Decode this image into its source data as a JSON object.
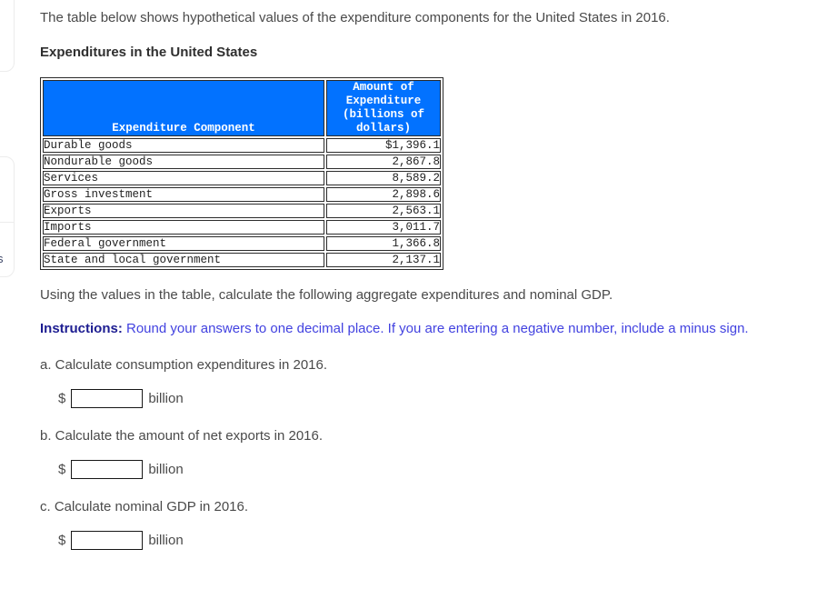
{
  "page": {
    "intro": "The table below shows hypothetical values of the expenditure components for the United States in 2016.",
    "table_title": "Expenditures in the United States",
    "prompt": "Using the values in the table, calculate the following aggregate expenditures and nominal GDP.",
    "instructions_label": "Instructions:",
    "instructions_text": " Round your answers to one decimal place. If you are entering a negative number, include a minus sign.",
    "side_fragment_text": "s"
  },
  "table": {
    "col1_header": "Expenditure Component",
    "col2_header_lines": [
      "Amount of",
      "Expenditure",
      "(billions of",
      "dollars)"
    ],
    "header_bg": "#0272ff",
    "header_text_color": "#ffffff",
    "rows": [
      {
        "component": "Durable goods",
        "amount": "$1,396.1"
      },
      {
        "component": "Nondurable goods",
        "amount": "2,867.8"
      },
      {
        "component": "Services",
        "amount": "8,589.2"
      },
      {
        "component": "Gross investment",
        "amount": "2,898.6"
      },
      {
        "component": "Exports",
        "amount": "2,563.1"
      },
      {
        "component": "Imports",
        "amount": "3,011.7"
      },
      {
        "component": "Federal government",
        "amount": "1,366.8"
      },
      {
        "component": "State and local government",
        "amount": "2,137.1"
      }
    ]
  },
  "questions": [
    {
      "id": "a",
      "text": "a. Calculate consumption expenditures in 2016.",
      "currency": "$",
      "unit": "billion",
      "value": ""
    },
    {
      "id": "b",
      "text": "b. Calculate the amount of net exports in 2016.",
      "currency": "$",
      "unit": "billion",
      "value": ""
    },
    {
      "id": "c",
      "text": "c. Calculate nominal GDP in 2016.",
      "currency": "$",
      "unit": "billion",
      "value": ""
    }
  ],
  "colors": {
    "header_blue": "#0272ff",
    "instructions_label": "#1d1d91",
    "instructions_text": "#4242e0",
    "body_text": "#4a4a4a",
    "table_text": "#1f1f1f"
  }
}
